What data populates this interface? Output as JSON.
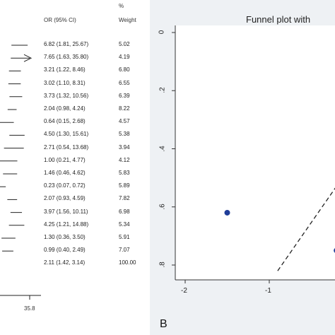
{
  "chart_data": [
    {
      "type": "forest",
      "columns": {
        "or_header": "OR (95% CI)",
        "weight_header_top": "%",
        "weight_header": "Weight"
      },
      "rows": [
        {
          "or": 6.82,
          "lo": 1.81,
          "hi": 25.67,
          "or_text": "6.82 (1.81, 25.67)",
          "weight": "5.02"
        },
        {
          "or": 7.65,
          "lo": 1.63,
          "hi": 35.8,
          "or_text": "7.65 (1.63, 35.80)",
          "weight": "4.19",
          "arrow": true
        },
        {
          "or": 3.21,
          "lo": 1.22,
          "hi": 8.46,
          "or_text": "3.21 (1.22, 8.46)",
          "weight": "6.80"
        },
        {
          "or": 3.02,
          "lo": 1.1,
          "hi": 8.31,
          "or_text": "3.02 (1.10, 8.31)",
          "weight": "6.55"
        },
        {
          "or": 3.73,
          "lo": 1.32,
          "hi": 10.56,
          "or_text": "3.73 (1.32, 10.56)",
          "weight": "6.39"
        },
        {
          "or": 2.04,
          "lo": 0.98,
          "hi": 4.24,
          "or_text": "2.04 (0.98, 4.24)",
          "weight": "8.22"
        },
        {
          "or": 0.64,
          "lo": 0.15,
          "hi": 2.68,
          "or_text": "0.64 (0.15, 2.68)",
          "weight": "4.57"
        },
        {
          "or": 4.5,
          "lo": 1.3,
          "hi": 15.61,
          "or_text": "4.50 (1.30, 15.61)",
          "weight": "5.38"
        },
        {
          "or": 2.71,
          "lo": 0.54,
          "hi": 13.68,
          "or_text": "2.71 (0.54, 13.68)",
          "weight": "3.94"
        },
        {
          "or": 1.0,
          "lo": 0.21,
          "hi": 4.77,
          "or_text": "1.00 (0.21, 4.77)",
          "weight": "4.12"
        },
        {
          "or": 1.46,
          "lo": 0.46,
          "hi": 4.62,
          "or_text": "1.46 (0.46, 4.62)",
          "weight": "5.83"
        },
        {
          "or": 0.23,
          "lo": 0.07,
          "hi": 0.72,
          "or_text": "0.23 (0.07, 0.72)",
          "weight": "5.89"
        },
        {
          "or": 2.07,
          "lo": 0.93,
          "hi": 4.59,
          "or_text": "2.07 (0.93, 4.59)",
          "weight": "7.82"
        },
        {
          "or": 3.97,
          "lo": 1.56,
          "hi": 10.11,
          "or_text": "3.97 (1.56, 10.11)",
          "weight": "6.98"
        },
        {
          "or": 4.25,
          "lo": 1.21,
          "hi": 14.88,
          "or_text": "4.25 (1.21, 14.88)",
          "weight": "5.34"
        },
        {
          "or": 1.3,
          "lo": 0.36,
          "hi": 3.5,
          "or_text": "1.30 (0.36, 3.50)",
          "weight": "5.91"
        },
        {
          "or": 0.99,
          "lo": 0.4,
          "hi": 2.49,
          "or_text": "0.99 (0.40, 2.49)",
          "weight": "7.07"
        },
        {
          "or": 2.11,
          "lo": 1.42,
          "hi": 3.14,
          "or_text": "2.11 (1.42, 3.14)",
          "weight": "100.00",
          "overall": true
        }
      ],
      "x_axis_max_label": "35.8",
      "x_axis_max": 35.8
    },
    {
      "type": "scatter",
      "title": "Funnel plot with",
      "panel_label": "B",
      "xlim": [
        -2.2,
        0.5
      ],
      "ylim": [
        0,
        0.85
      ],
      "y_reversed": true,
      "x_ticks": [
        -2,
        -1
      ],
      "x_tick_labels": [
        "-2",
        "-1"
      ],
      "y_ticks": [
        0,
        0.2,
        0.4,
        0.6,
        0.8
      ],
      "y_tick_labels": [
        "0",
        ".2",
        ".4",
        ".6",
        ".8"
      ],
      "points": [
        {
          "x": -1.5,
          "y": 0.62
        },
        {
          "x": -0.2,
          "y": 0.75
        }
      ],
      "pseudo_ci_line": {
        "x": [
          -0.9,
          0.35
        ],
        "y": [
          0.82,
          0.3
        ]
      },
      "point_color": "#1f3d99"
    }
  ]
}
